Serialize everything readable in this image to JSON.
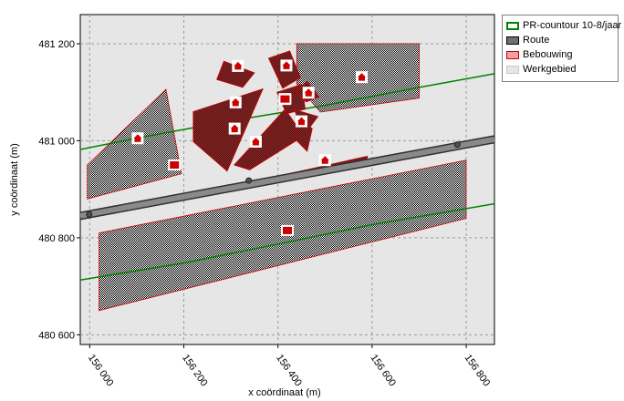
{
  "chart_data": {
    "type": "map",
    "xlabel": "x coördinaat (m)",
    "ylabel": "y coördinaat (m)",
    "xlim": [
      155980,
      156860
    ],
    "ylim": [
      480580,
      481260
    ],
    "xticks": [
      156000,
      156200,
      156400,
      156600,
      156800
    ],
    "yticks": [
      480600,
      480800,
      481000,
      481200
    ],
    "xtick_labels": [
      "156 000",
      "156 200",
      "156 400",
      "156 600",
      "156 800"
    ],
    "ytick_labels": [
      "480 600",
      "480 800",
      "481 000",
      "481 200"
    ],
    "grid": true,
    "legend_position": "right",
    "legend": [
      {
        "key": "pr",
        "label": "PR-countour 10-8/jaar",
        "color": "#008000"
      },
      {
        "key": "route",
        "label": "Route",
        "color": "#707070"
      },
      {
        "key": "bebouwing",
        "label": "Bebouwing",
        "color": "#cc0000"
      },
      {
        "key": "werkgebied",
        "label": "Werkgebied",
        "color": "#e6e6e6"
      }
    ],
    "route": {
      "points": [
        [
          155980,
          480845
        ],
        [
          156860,
          481003
        ]
      ],
      "markers": [
        [
          155999,
          480848
        ],
        [
          156338,
          480918
        ],
        [
          156781,
          480992
        ]
      ]
    },
    "pr_contours": [
      [
        [
          155980,
          480982
        ],
        [
          156120,
          481009
        ],
        [
          156300,
          481041
        ],
        [
          156500,
          481073
        ],
        [
          156700,
          481110
        ],
        [
          156860,
          481138
        ]
      ],
      [
        [
          155980,
          480713
        ],
        [
          156200,
          480748
        ],
        [
          156400,
          480787
        ],
        [
          156600,
          480827
        ],
        [
          156860,
          480870
        ]
      ]
    ],
    "hatched_areas": [
      [
        [
          155995,
          480950
        ],
        [
          156162,
          481106
        ],
        [
          156195,
          480932
        ],
        [
          155995,
          480880
        ]
      ],
      [
        [
          156440,
          481200
        ],
        [
          156700,
          481200
        ],
        [
          156700,
          481088
        ],
        [
          156490,
          481059
        ],
        [
          156440,
          481117
        ]
      ],
      [
        [
          156020,
          480810
        ],
        [
          156800,
          480960
        ],
        [
          156800,
          480840
        ],
        [
          156020,
          480650
        ]
      ]
    ],
    "building_blocks": [
      [
        [
          156285,
          481164
        ],
        [
          156350,
          481140
        ],
        [
          156325,
          481110
        ],
        [
          156270,
          481126
        ]
      ],
      [
        [
          156380,
          481170
        ],
        [
          156425,
          481185
        ],
        [
          156448,
          481130
        ],
        [
          156410,
          481108
        ]
      ],
      [
        [
          156220,
          481060
        ],
        [
          156368,
          481107
        ],
        [
          156292,
          480937
        ],
        [
          156220,
          480998
        ]
      ],
      [
        [
          156307,
          480950
        ],
        [
          156415,
          481065
        ],
        [
          156455,
          481010
        ],
        [
          156340,
          480940
        ]
      ],
      [
        [
          156398,
          481100
        ],
        [
          156450,
          481116
        ],
        [
          156458,
          481065
        ],
        [
          156418,
          481056
        ]
      ],
      [
        [
          156435,
          481064
        ],
        [
          156485,
          481050
        ],
        [
          156468,
          481028
        ],
        [
          156442,
          481045
        ]
      ],
      [
        [
          156438,
          481050
        ],
        [
          156473,
          481025
        ],
        [
          156462,
          480978
        ],
        [
          156440,
          481000
        ]
      ],
      [
        [
          156438,
          481099
        ],
        [
          156462,
          481122
        ],
        [
          156488,
          481090
        ],
        [
          156460,
          481080
        ]
      ],
      [
        [
          156418,
          480931
        ],
        [
          156590,
          480968
        ],
        [
          156590,
          480955
        ],
        [
          156418,
          480922
        ]
      ]
    ],
    "houses": [
      [
        156315,
        481154
      ],
      [
        156418,
        481155
      ],
      [
        156578,
        481131
      ],
      [
        156465,
        481099
      ],
      [
        156310,
        481079
      ],
      [
        156415,
        481086
      ],
      [
        156308,
        481025
      ],
      [
        156450,
        481040
      ],
      [
        156353,
        480998
      ],
      [
        156102,
        481005
      ],
      [
        156500,
        480960
      ]
    ],
    "buildings_square": [
      [
        156180,
        480950
      ],
      [
        156420,
        480815
      ],
      [
        156415,
        481086
      ]
    ]
  }
}
